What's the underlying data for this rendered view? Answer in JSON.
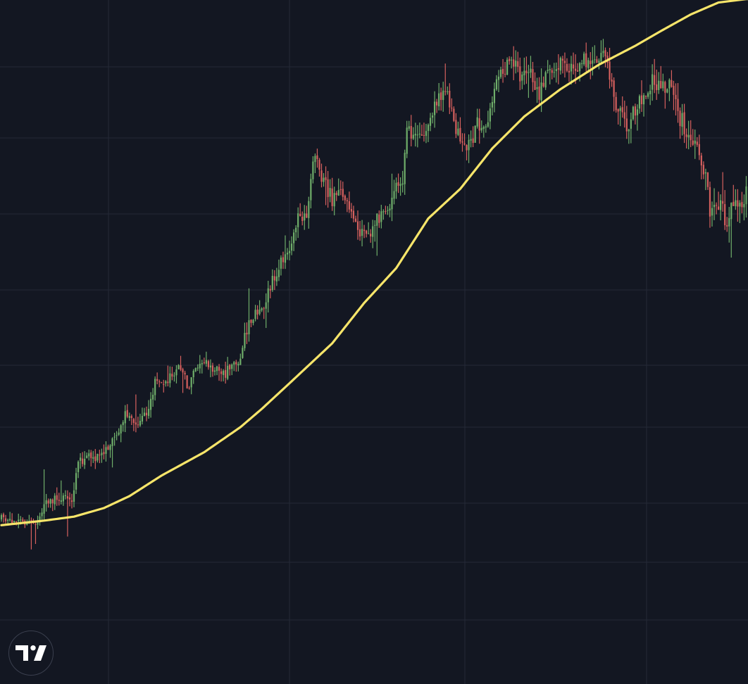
{
  "colors": {
    "background": "#131722",
    "grid": "#252a37",
    "up": "#6fae6a",
    "down": "#d6605e",
    "moving_average": "#f7e56a",
    "logo": "#ffffff"
  },
  "logo": {
    "icon": "tradingview-logo-icon"
  },
  "chart_data": {
    "type": "candlestick",
    "title": "",
    "xlabel": "",
    "ylabel": "",
    "ylim": [
      0,
      100
    ],
    "grid": true,
    "price_scale_visible": false,
    "time_scale_visible": false,
    "series": [
      {
        "kind": "candles",
        "bars": 350,
        "trend_anchors": [
          [
            0,
            14.0
          ],
          [
            8,
            13.8
          ],
          [
            12,
            13.0
          ],
          [
            17,
            13.7
          ],
          [
            22,
            17.2
          ],
          [
            28,
            17.6
          ],
          [
            33,
            17.5
          ],
          [
            36,
            24.0
          ],
          [
            45,
            25.0
          ],
          [
            50,
            26.0
          ],
          [
            56,
            30.0
          ],
          [
            58,
            32.0
          ],
          [
            63,
            30.0
          ],
          [
            68,
            32.5
          ],
          [
            72,
            37.5
          ],
          [
            80,
            39.0
          ],
          [
            84,
            41.0
          ],
          [
            87,
            37.0
          ],
          [
            91,
            40.5
          ],
          [
            96,
            41.0
          ],
          [
            103,
            39.0
          ],
          [
            109,
            41.0
          ],
          [
            112,
            42.0
          ],
          [
            114,
            46.5
          ],
          [
            118,
            49.5
          ],
          [
            122,
            50.0
          ],
          [
            128,
            56.5
          ],
          [
            135,
            61.5
          ],
          [
            139,
            66.5
          ],
          [
            143,
            67.0
          ],
          [
            145,
            74.0
          ],
          [
            147,
            77.5
          ],
          [
            151,
            73.0
          ],
          [
            155,
            70.0
          ],
          [
            159,
            72.0
          ],
          [
            163,
            68.0
          ],
          [
            167,
            64.0
          ],
          [
            172,
            63.5
          ],
          [
            175,
            66.0
          ],
          [
            180,
            68.0
          ],
          [
            184,
            71.0
          ],
          [
            188,
            74.0
          ],
          [
            190,
            82.0
          ],
          [
            195,
            81.5
          ],
          [
            200,
            83.0
          ],
          [
            204,
            87.5
          ],
          [
            208,
            88.5
          ],
          [
            211,
            85.5
          ],
          [
            215,
            80.0
          ],
          [
            219,
            79.0
          ],
          [
            223,
            83.5
          ],
          [
            227,
            83.0
          ],
          [
            231,
            89.0
          ],
          [
            236,
            93.0
          ],
          [
            240,
            94.0
          ],
          [
            244,
            91.5
          ],
          [
            248,
            92.5
          ],
          [
            252,
            88.0
          ],
          [
            256,
            92.0
          ],
          [
            260,
            94.0
          ],
          [
            265,
            92.5
          ],
          [
            270,
            93.0
          ],
          [
            274,
            94.5
          ],
          [
            278,
            93.0
          ],
          [
            281,
            96.5
          ],
          [
            284,
            95.5
          ],
          [
            286,
            89.5
          ],
          [
            290,
            85.0
          ],
          [
            294,
            82.5
          ],
          [
            298,
            87.0
          ],
          [
            302,
            89.5
          ],
          [
            306,
            90.5
          ],
          [
            310,
            90.0
          ],
          [
            314,
            91.0
          ],
          [
            318,
            84.0
          ],
          [
            322,
            82.0
          ],
          [
            325,
            79.0
          ],
          [
            329,
            76.0
          ],
          [
            332,
            68.0
          ],
          [
            336,
            69.0
          ],
          [
            340,
            66.0
          ],
          [
            344,
            70.0
          ],
          [
            347,
            68.5
          ],
          [
            349,
            70.5
          ]
        ]
      },
      {
        "kind": "moving_average",
        "anchors": [
          [
            0,
            12.8
          ],
          [
            20,
            13.6
          ],
          [
            34,
            14.3
          ],
          [
            48,
            15.8
          ],
          [
            60,
            17.9
          ],
          [
            75,
            21.5
          ],
          [
            95,
            25.6
          ],
          [
            112,
            30.0
          ],
          [
            122,
            33.2
          ],
          [
            135,
            37.7
          ],
          [
            155,
            44.7
          ],
          [
            170,
            51.8
          ],
          [
            185,
            57.9
          ],
          [
            200,
            66.6
          ],
          [
            215,
            71.8
          ],
          [
            230,
            78.9
          ],
          [
            245,
            84.5
          ],
          [
            262,
            89.3
          ],
          [
            280,
            93.6
          ],
          [
            297,
            96.9
          ],
          [
            310,
            99.7
          ],
          [
            323,
            102.4
          ],
          [
            336,
            104.5
          ],
          [
            349,
            105.1
          ]
        ]
      }
    ]
  }
}
